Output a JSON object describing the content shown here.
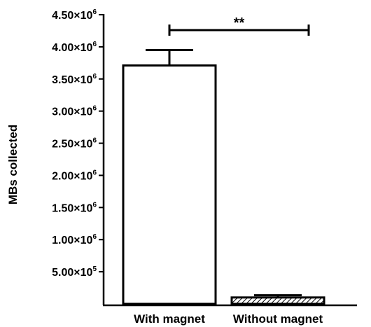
{
  "chart_data": {
    "type": "bar",
    "title": "",
    "xlabel": "",
    "ylabel": "MBs collected",
    "ylim": [
      0,
      4500000
    ],
    "yticks": [
      {
        "mantissa": "5.00",
        "exponent": "5",
        "value": 500000
      },
      {
        "mantissa": "1.00",
        "exponent": "6",
        "value": 1000000
      },
      {
        "mantissa": "1.50",
        "exponent": "6",
        "value": 1500000
      },
      {
        "mantissa": "2.00",
        "exponent": "6",
        "value": 2000000
      },
      {
        "mantissa": "2.50",
        "exponent": "6",
        "value": 2500000
      },
      {
        "mantissa": "3.00",
        "exponent": "6",
        "value": 3000000
      },
      {
        "mantissa": "3.50",
        "exponent": "6",
        "value": 3500000
      },
      {
        "mantissa": "4.00",
        "exponent": "6",
        "value": 4000000
      },
      {
        "mantissa": "4.50",
        "exponent": "6",
        "value": 4500000
      }
    ],
    "categories": [
      "With magnet",
      "Without magnet"
    ],
    "values": [
      3710000,
      100000
    ],
    "errors": [
      240000,
      35000
    ],
    "bar_fills": [
      "open",
      "hatched"
    ],
    "grid": false,
    "legend": "none",
    "annotation": {
      "text": "**",
      "between": [
        0,
        1
      ],
      "y": 4260000
    }
  },
  "colors": {
    "bar_outline": "#000000",
    "background": "#ffffff"
  }
}
